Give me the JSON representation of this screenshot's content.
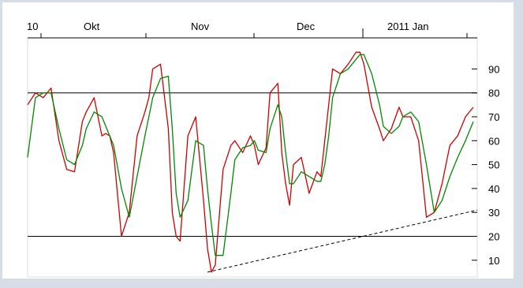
{
  "chart_data": {
    "type": "line",
    "title": "",
    "xlabel": "",
    "ylabel": "",
    "x_tick_labels": [
      "10",
      "Okt",
      "Nov",
      "Dec",
      "2011 Jan"
    ],
    "y_ticks": [
      10,
      20,
      30,
      40,
      50,
      60,
      70,
      80,
      90
    ],
    "ylim": [
      3,
      103
    ],
    "xlim": [
      0,
      115
    ],
    "grid": false,
    "legend": "none",
    "reference_lines": [
      20,
      80
    ],
    "colors": {
      "fast": "#cc0000",
      "slow": "#008800",
      "trend": "#000000",
      "reference": "#000000"
    },
    "series": [
      {
        "color": "#cc0000",
        "x": [
          0,
          2,
          4,
          6,
          8,
          10,
          12,
          14,
          15,
          17,
          19,
          20,
          21,
          22,
          24,
          26,
          28,
          30,
          31,
          32,
          34,
          36,
          37,
          38,
          39,
          41,
          43,
          45,
          46,
          47,
          48,
          50,
          52,
          53,
          55,
          57,
          58,
          59,
          61,
          62,
          64,
          65,
          66,
          67,
          68,
          70,
          72,
          74,
          75,
          76,
          77,
          78,
          80,
          82,
          84,
          85,
          86,
          88,
          90,
          91,
          93,
          95,
          96,
          98,
          100,
          102,
          104,
          106,
          108,
          110,
          112,
          114
        ],
        "values": [
          75,
          80,
          78,
          82,
          60,
          48,
          47,
          68,
          72,
          78,
          62,
          63,
          62,
          55,
          20,
          30,
          62,
          72,
          78,
          90,
          92,
          65,
          30,
          20,
          18,
          62,
          70,
          35,
          15,
          5,
          8,
          48,
          58,
          60,
          55,
          62,
          58,
          50,
          57,
          80,
          84,
          55,
          42,
          33,
          50,
          53,
          38,
          47,
          45,
          60,
          75,
          90,
          88,
          92,
          97,
          97,
          92,
          74,
          65,
          60,
          65,
          74,
          70,
          70,
          60,
          28,
          30,
          42,
          58,
          62,
          70,
          74
        ]
      },
      {
        "color": "#008800",
        "x": [
          0,
          2,
          4,
          6,
          8,
          10,
          12,
          14,
          15,
          17,
          19,
          20,
          21,
          22,
          24,
          26,
          28,
          30,
          31,
          32,
          34,
          36,
          37,
          38,
          39,
          41,
          43,
          45,
          46,
          47,
          48,
          50,
          52,
          53,
          55,
          57,
          58,
          59,
          61,
          62,
          64,
          65,
          66,
          67,
          68,
          70,
          72,
          74,
          75,
          76,
          77,
          78,
          80,
          82,
          84,
          85,
          86,
          88,
          90,
          91,
          93,
          95,
          96,
          98,
          100,
          102,
          104,
          106,
          108,
          110,
          112,
          114
        ],
        "values": [
          53,
          78,
          80,
          80,
          65,
          52,
          50,
          58,
          65,
          72,
          70,
          66,
          62,
          58,
          40,
          28,
          45,
          62,
          70,
          78,
          86,
          87,
          65,
          38,
          28,
          35,
          60,
          58,
          40,
          25,
          12,
          12,
          38,
          52,
          57,
          58,
          60,
          56,
          55,
          65,
          75,
          70,
          55,
          42,
          42,
          47,
          45,
          43,
          43,
          50,
          62,
          78,
          88,
          90,
          94,
          96,
          96,
          88,
          75,
          66,
          63,
          66,
          70,
          72,
          68,
          50,
          30,
          35,
          45,
          53,
          60,
          68
        ]
      },
      {
        "color": "#000000",
        "x": [
          46,
          115
        ],
        "values": [
          5,
          31
        ]
      }
    ]
  }
}
